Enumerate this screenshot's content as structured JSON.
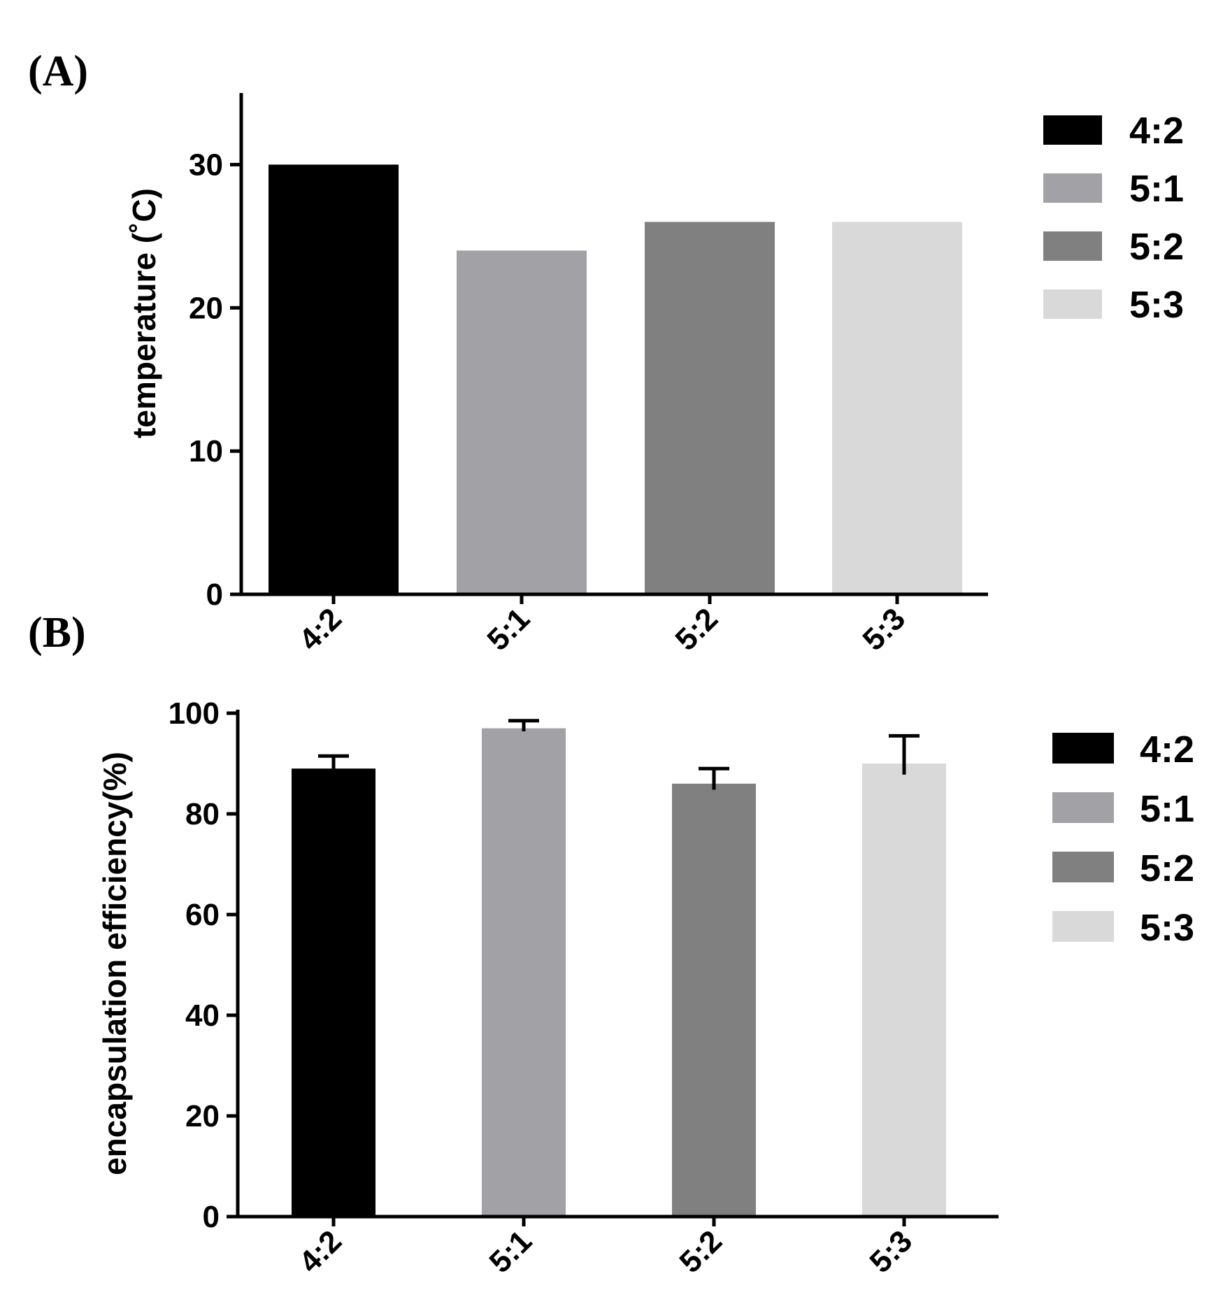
{
  "chart_data": [
    {
      "type": "bar",
      "panel_label": "(A)",
      "categories": [
        "4:2",
        "5:1",
        "5:2",
        "5:3"
      ],
      "values": [
        30,
        24,
        26,
        26
      ],
      "colors": [
        "#000000",
        "#a2a1a6",
        "#808080",
        "#d9d9d9"
      ],
      "xlabel": "",
      "ylabel": "temperature (˚C)",
      "ylim": [
        0,
        35
      ],
      "yticks": [
        0,
        10,
        20,
        30
      ],
      "legend": [
        "4:2",
        "5:1",
        "5:2",
        "5:3"
      ],
      "legend_position": "top-right",
      "grid": false
    },
    {
      "type": "bar",
      "panel_label": "(B)",
      "categories": [
        "4:2",
        "5:1",
        "5:2",
        "5:3"
      ],
      "values": [
        89,
        97,
        86,
        90
      ],
      "errors": [
        2.5,
        1.5,
        3,
        5.5
      ],
      "colors": [
        "#000000",
        "#a2a1a6",
        "#808080",
        "#d9d9d9"
      ],
      "xlabel": "",
      "ylabel": "encapsulation efficiency(%)",
      "ylim": [
        0,
        100
      ],
      "yticks": [
        0,
        20,
        40,
        60,
        80,
        100
      ],
      "legend": [
        "4:2",
        "5:1",
        "5:2",
        "5:3"
      ],
      "legend_position": "top-right",
      "grid": false
    }
  ]
}
